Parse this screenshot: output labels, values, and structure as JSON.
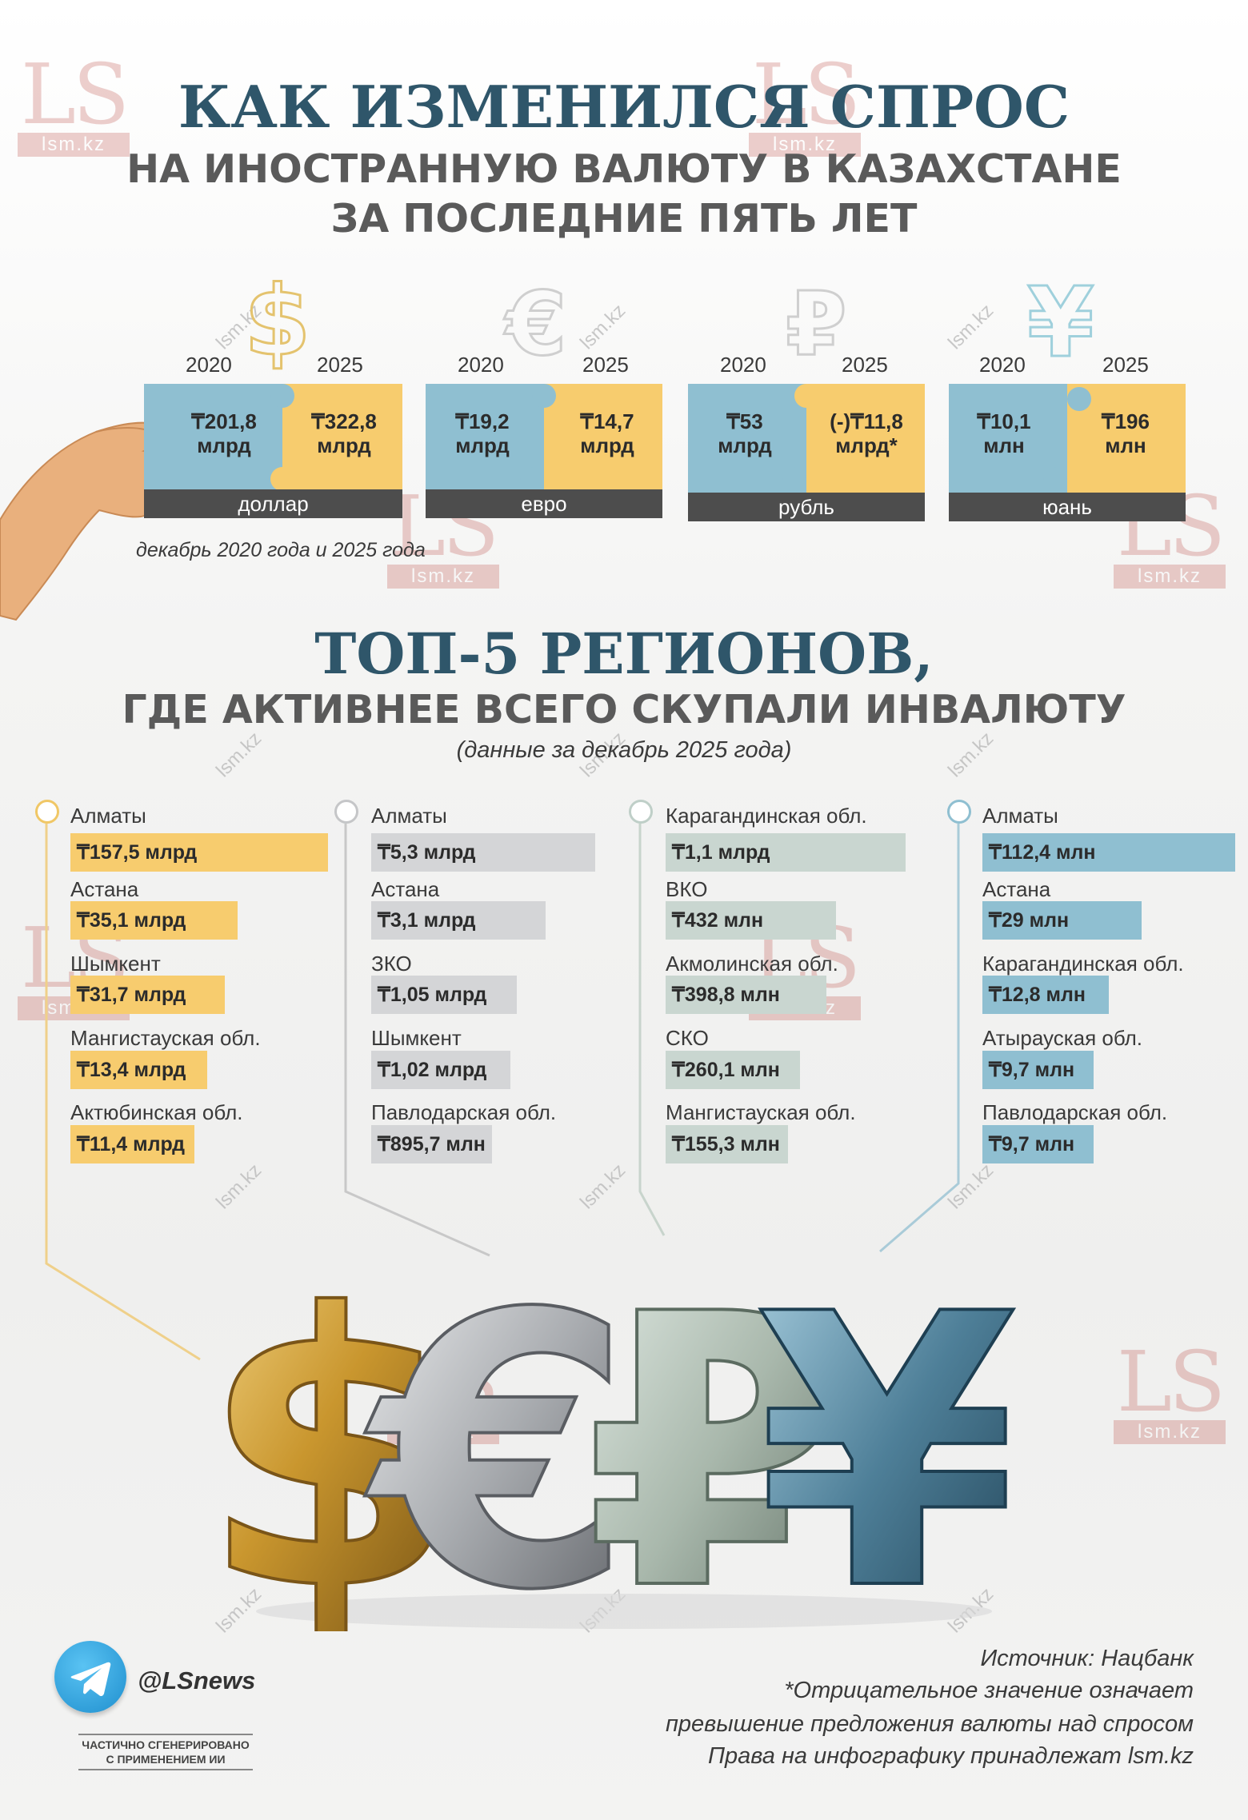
{
  "header": {
    "title": "КАК ИЗМЕНИЛСЯ СПРОС",
    "subtitle_line1": "НА ИНОСТРАННУЮ ВАЛЮТУ В КАЗАХСТАНЕ",
    "subtitle_line2": "ЗА ПОСЛЕДНИЕ ПЯТЬ ЛЕТ"
  },
  "currencies": [
    {
      "symbol": "$",
      "year_a": "2020",
      "year_b": "2025",
      "value_a": [
        "₸201,8",
        "млрд"
      ],
      "value_b": [
        "₸322,8",
        "млрд"
      ],
      "name": "доллар"
    },
    {
      "symbol": "€",
      "year_a": "2020",
      "year_b": "2025",
      "value_a": [
        "₸19,2",
        "млрд"
      ],
      "value_b": [
        "₸14,7",
        "млрд"
      ],
      "name": "евро"
    },
    {
      "symbol": "₽",
      "year_a": "2020",
      "year_b": "2025",
      "value_a": [
        "₸53",
        "млрд"
      ],
      "value_b": [
        "(-)₸11,8",
        "млрд*"
      ],
      "name": "рубль"
    },
    {
      "symbol": "¥",
      "year_a": "2020",
      "year_b": "2025",
      "value_a": [
        "₸10,1",
        "млн"
      ],
      "value_b": [
        "₸196",
        "млн"
      ],
      "name": "юань"
    }
  ],
  "period_note": "декабрь 2020 года и 2025 года",
  "top5": {
    "title": "ТОП-5 РЕГИОНОВ,",
    "subtitle": "ГДЕ АКТИВНЕЕ ВСЕГО СКУПАЛИ ИНВАЛЮТУ",
    "note": "(данные за декабрь 2025 года)"
  },
  "regions": [
    {
      "currency": "dollar",
      "color": "#f7cc6e",
      "dot": "#f0c766",
      "items": [
        {
          "name": "Алматы",
          "value": "₸157,5 млрд",
          "share": 1.0
        },
        {
          "name": "Астана",
          "value": "₸35,1 млрд",
          "share": 0.65
        },
        {
          "name": "Шымкент",
          "value": "₸31,7 млрд",
          "share": 0.6
        },
        {
          "name": "Мангистауская обл.",
          "value": "₸13,4 млрд",
          "share": 0.53
        },
        {
          "name": "Актюбинская обл.",
          "value": "₸11,4 млрд",
          "share": 0.48
        }
      ]
    },
    {
      "currency": "euro",
      "color": "#d4d5d7",
      "dot": "#c5c6c8",
      "items": [
        {
          "name": "Алматы",
          "value": "₸5,3 млрд",
          "share": 1.0
        },
        {
          "name": "Астана",
          "value": "₸3,1 млрд",
          "share": 0.78
        },
        {
          "name": "ЗКО",
          "value": "₸1,05 млрд",
          "share": 0.65
        },
        {
          "name": "Шымкент",
          "value": "₸1,02 млрд",
          "share": 0.62
        },
        {
          "name": "Павлодарская обл.",
          "value": "₸895,7 млн",
          "share": 0.54
        }
      ]
    },
    {
      "currency": "ruble",
      "color": "#c9d6d0",
      "dot": "#bfcfc8",
      "items": [
        {
          "name": "Карагандинская обл.",
          "value": "₸1,1 млрд",
          "share": 1.0
        },
        {
          "name": "ВКО",
          "value": "₸432 млн",
          "share": 0.71
        },
        {
          "name": "Акмолинская обл.",
          "value": "₸398,8 млн",
          "share": 0.67
        },
        {
          "name": "СКО",
          "value": "₸260,1 млн",
          "share": 0.56
        },
        {
          "name": "Мангистауская обл.",
          "value": "₸155,3 млн",
          "share": 0.51
        }
      ]
    },
    {
      "currency": "yuan",
      "color": "#8fbfd1",
      "dot": "#8fbfd1",
      "items": [
        {
          "name": "Алматы",
          "value": "₸112,4 млн",
          "share": 1.0
        },
        {
          "name": "Астана",
          "value": "₸29 млн",
          "share": 0.63
        },
        {
          "name": "Карагандинская обл.",
          "value": "₸12,8 млн",
          "share": 0.5
        },
        {
          "name": "Атырауская обл.",
          "value": "₸9,7 млн",
          "share": 0.44
        },
        {
          "name": "Павлодарская обл.",
          "value": "₸9,7 млн",
          "share": 0.44
        }
      ]
    }
  ],
  "big_symbols": {
    "dollar": {
      "glyph": "$",
      "color": "#c9962e"
    },
    "euro": {
      "glyph": "€",
      "color": "#a9acb0"
    },
    "ruble": {
      "glyph": "₽",
      "color": "#a9b8ac"
    },
    "yuan": {
      "glyph": "¥",
      "color": "#4e7f98"
    }
  },
  "watermark": {
    "logo": "LS",
    "url": "lsm.kz"
  },
  "telegram": {
    "handle": "@LSnews"
  },
  "ai_note": [
    "ЧАСТИЧНО СГЕНЕРИРОВАНО",
    "С ПРИМЕНЕНИЕМ ИИ"
  ],
  "footer": {
    "source": "Источник: Нацбанк",
    "note1": "*Отрицательное значение означает",
    "note2": "превышение предложения валюты над спросом",
    "rights": "Права на инфографику принадлежат lsm.kz"
  }
}
